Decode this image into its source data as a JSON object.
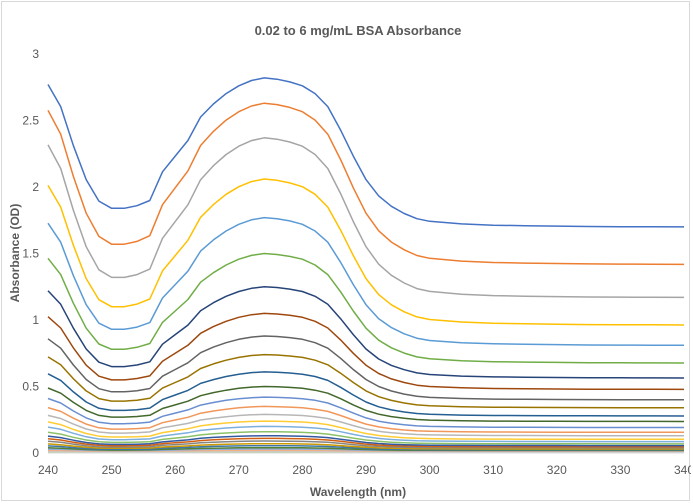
{
  "chart_data": {
    "type": "line",
    "title": "0.02 to 6 mg/mL BSA Absorbance",
    "xlabel": "Wavelength (nm)",
    "ylabel": "Absorbance (OD)",
    "xlim": [
      240,
      340
    ],
    "ylim": [
      0,
      3
    ],
    "x_ticks": [
      "240",
      "250",
      "260",
      "270",
      "280",
      "290",
      "300",
      "310",
      "320",
      "330",
      "340"
    ],
    "y_ticks": [
      "0",
      "0.5",
      "1",
      "1.5",
      "2",
      "2.5",
      "3"
    ],
    "grid": false,
    "legend": "none",
    "profile": {
      "x": [
        240,
        242,
        244,
        246,
        248,
        250,
        252,
        254,
        256,
        258,
        260,
        262,
        264,
        266,
        268,
        270,
        272,
        274,
        276,
        278,
        280,
        282,
        284,
        286,
        288,
        290,
        292,
        294,
        296,
        298,
        300,
        305,
        310,
        315,
        320,
        325,
        330,
        335,
        340
      ],
      "shape": [
        0.95,
        0.78,
        0.48,
        0.22,
        0.055,
        0.0,
        0.0,
        0.02,
        0.06,
        0.28,
        0.4,
        0.52,
        0.7,
        0.8,
        0.88,
        0.94,
        0.98,
        1.0,
        0.99,
        0.97,
        0.94,
        0.88,
        0.78,
        0.6,
        0.4,
        0.22,
        0.095,
        0.015,
        -0.04,
        -0.08,
        -0.1,
        -0.12,
        -0.13,
        -0.134,
        -0.137,
        -0.14,
        -0.141,
        -0.142,
        -0.143
      ]
    },
    "series": [
      {
        "peak": 2.82,
        "trough": 1.84,
        "color": "#4472c4"
      },
      {
        "peak": 2.63,
        "trough": 1.57,
        "color": "#ed7d31"
      },
      {
        "peak": 2.37,
        "trough": 1.32,
        "color": "#a5a5a5"
      },
      {
        "peak": 2.06,
        "trough": 1.1,
        "color": "#ffc000"
      },
      {
        "peak": 1.77,
        "trough": 0.93,
        "color": "#5b9bd5"
      },
      {
        "peak": 1.5,
        "trough": 0.78,
        "color": "#70ad47"
      },
      {
        "peak": 1.25,
        "trough": 0.65,
        "color": "#264478"
      },
      {
        "peak": 1.05,
        "trough": 0.55,
        "color": "#9e480e"
      },
      {
        "peak": 0.88,
        "trough": 0.46,
        "color": "#636363"
      },
      {
        "peak": 0.74,
        "trough": 0.39,
        "color": "#997300"
      },
      {
        "peak": 0.61,
        "trough": 0.32,
        "color": "#255e91"
      },
      {
        "peak": 0.5,
        "trough": 0.27,
        "color": "#43682b"
      },
      {
        "peak": 0.42,
        "trough": 0.22,
        "color": "#698ed0"
      },
      {
        "peak": 0.35,
        "trough": 0.18,
        "color": "#f1975a"
      },
      {
        "peak": 0.29,
        "trough": 0.15,
        "color": "#b7b7b7"
      },
      {
        "peak": 0.24,
        "trough": 0.12,
        "color": "#ffcd33"
      },
      {
        "peak": 0.2,
        "trough": 0.1,
        "color": "#7cafdd"
      },
      {
        "peak": 0.16,
        "trough": 0.08,
        "color": "#8cc168"
      },
      {
        "peak": 0.13,
        "trough": 0.065,
        "color": "#335aa1"
      },
      {
        "peak": 0.11,
        "trough": 0.055,
        "color": "#d26012"
      },
      {
        "peak": 0.09,
        "trough": 0.045,
        "color": "#848484"
      },
      {
        "peak": 0.07,
        "trough": 0.035,
        "color": "#cc9a00"
      },
      {
        "peak": 0.055,
        "trough": 0.028,
        "color": "#3f76a8"
      },
      {
        "peak": 0.04,
        "trough": 0.022,
        "color": "#548235"
      },
      {
        "peak": 0.03,
        "trough": 0.018,
        "color": "#8faadc"
      },
      {
        "peak": 0.02,
        "trough": 0.014,
        "color": "#f4b183"
      },
      {
        "peak": 0.012,
        "trough": 0.01,
        "color": "#c9c9c9"
      },
      {
        "peak": 0.006,
        "trough": 0.006,
        "color": "#a9d18e"
      }
    ]
  }
}
